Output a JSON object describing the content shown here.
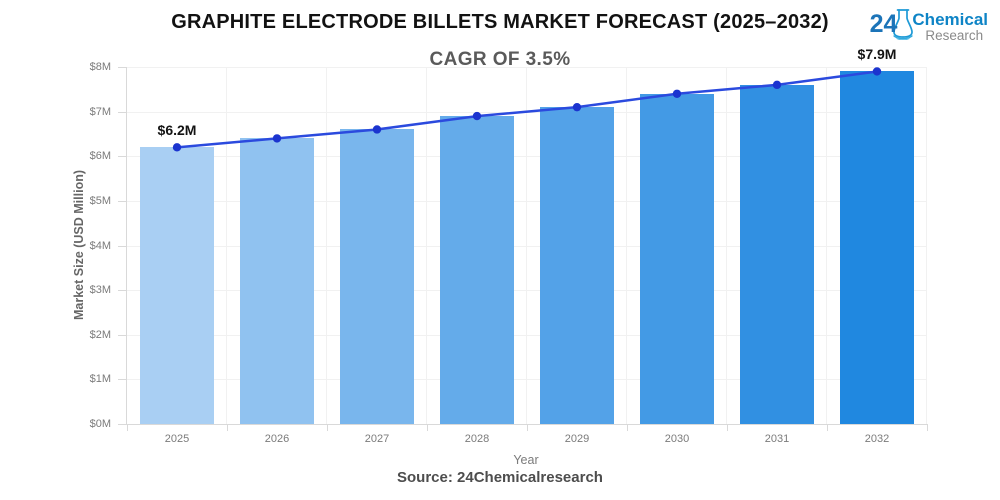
{
  "header": {
    "title": "GRAPHITE ELECTRODE BILLETS MARKET FORECAST (2025–2032)",
    "subtitle": "CAGR OF 3.5%"
  },
  "logo": {
    "number": "24",
    "line1": "Chemical",
    "line2": "Research",
    "blue": "#0e84c6",
    "gray": "#8a8a8a"
  },
  "chart_data": {
    "type": "bar",
    "overlay": "line",
    "title": "GRAPHITE ELECTRODE BILLETS MARKET FORECAST (2025–2032)",
    "subtitle": "CAGR OF 3.5%",
    "categories": [
      "2025",
      "2026",
      "2027",
      "2028",
      "2029",
      "2030",
      "2031",
      "2032"
    ],
    "values": [
      6.2,
      6.4,
      6.6,
      6.9,
      7.1,
      7.4,
      7.6,
      7.9
    ],
    "unit": "USD Million",
    "xlabel": "Year",
    "ylabel": "Market Size (USD Million)",
    "ylim": [
      0,
      8
    ],
    "ytick_labels": [
      "$0M",
      "$1M",
      "$2M",
      "$3M",
      "$4M",
      "$5M",
      "$6M",
      "$7M",
      "$8M"
    ],
    "grid": true,
    "legend": false,
    "bar_colors": [
      "#a9cff3",
      "#90c2f0",
      "#79b6ed",
      "#64abea",
      "#53a2e8",
      "#439ae5",
      "#3190e2",
      "#2088e0"
    ],
    "line_color": "#2b4ade",
    "dot_color": "#1b34cf",
    "annotations": [
      {
        "index": 0,
        "text": "$6.2M"
      },
      {
        "index": 7,
        "text": "$7.9M"
      }
    ]
  },
  "footer": {
    "source": "Source: 24Chemicalresearch"
  }
}
